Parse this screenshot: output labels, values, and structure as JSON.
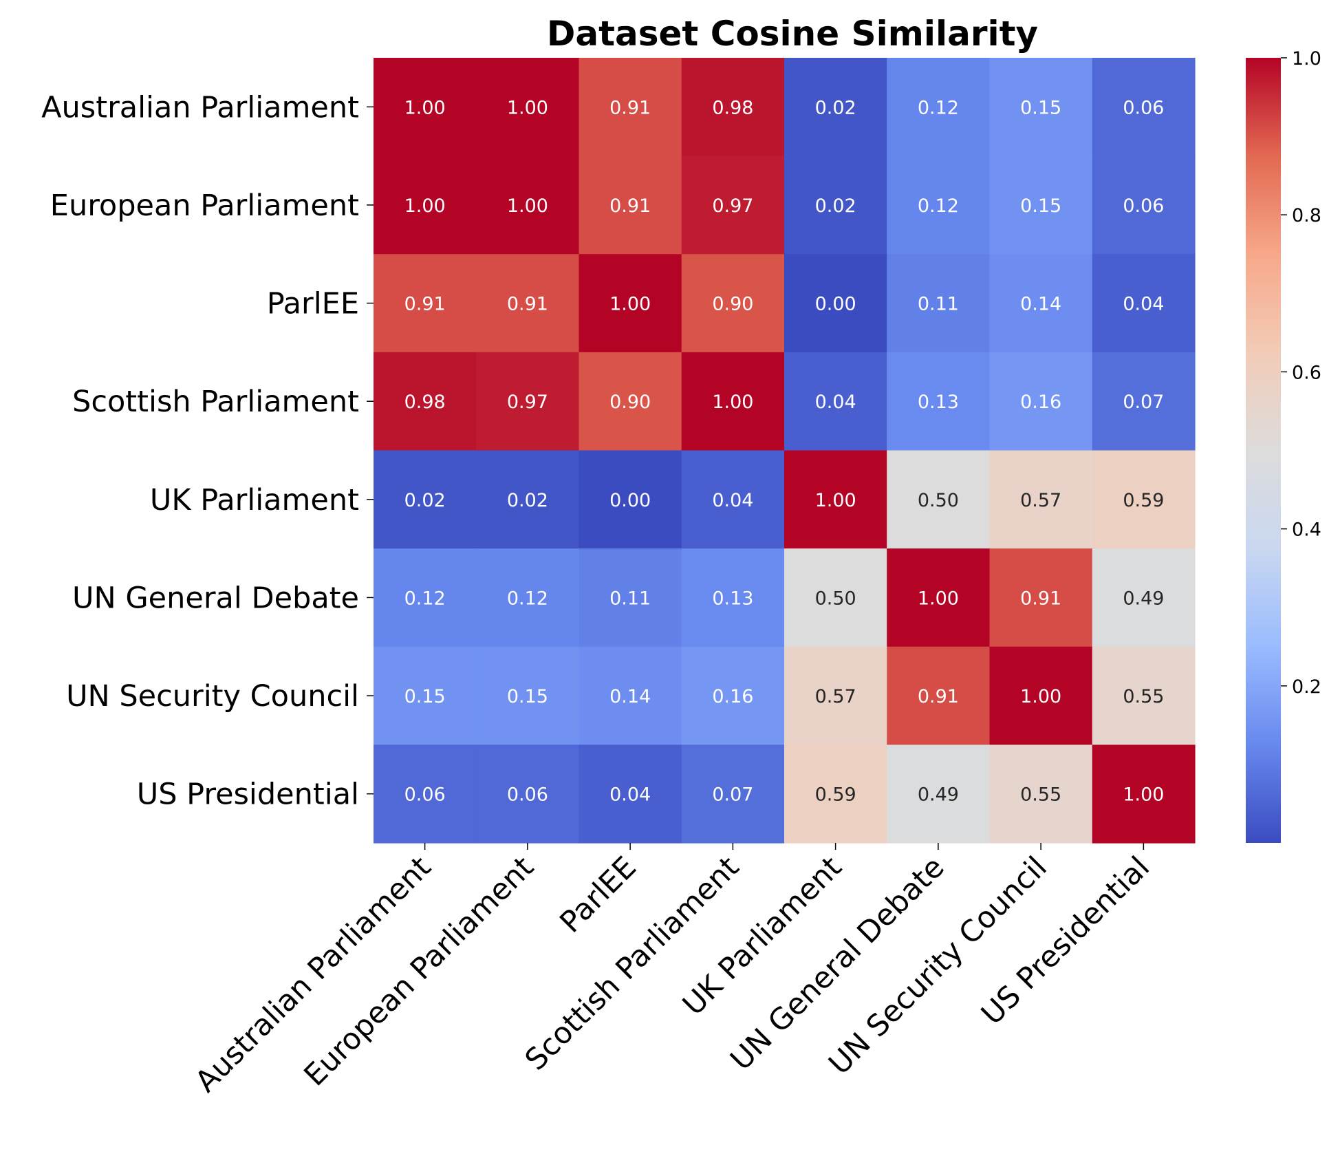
{
  "chart_data": {
    "type": "heatmap",
    "title": "Dataset Cosine Similarity",
    "xlabel": "",
    "ylabel": "",
    "colormap": "coolwarm",
    "colormap_stops": [
      "#3b4cc0",
      "#6788ee",
      "#9abbff",
      "#c9d7f0",
      "#dddcdc",
      "#f2cbb7",
      "#f7a889",
      "#e26952",
      "#b40426"
    ],
    "vmin": 0.0,
    "vmax": 1.0,
    "categories": [
      "Australian Parliament",
      "European Parliament",
      "ParlEE",
      "Scottish Parliament",
      "UK Parliament",
      "UN General Debate",
      "UN Security Council",
      "US Presidential"
    ],
    "matrix": [
      [
        1.0,
        1.0,
        0.91,
        0.98,
        0.02,
        0.12,
        0.15,
        0.06
      ],
      [
        1.0,
        1.0,
        0.91,
        0.97,
        0.02,
        0.12,
        0.15,
        0.06
      ],
      [
        0.91,
        0.91,
        1.0,
        0.9,
        0.0,
        0.11,
        0.14,
        0.04
      ],
      [
        0.98,
        0.97,
        0.9,
        1.0,
        0.04,
        0.13,
        0.16,
        0.07
      ],
      [
        0.02,
        0.02,
        0.0,
        0.04,
        1.0,
        0.5,
        0.57,
        0.59
      ],
      [
        0.12,
        0.12,
        0.11,
        0.13,
        0.5,
        1.0,
        0.91,
        0.49
      ],
      [
        0.15,
        0.15,
        0.14,
        0.16,
        0.57,
        0.91,
        1.0,
        0.55
      ],
      [
        0.06,
        0.06,
        0.04,
        0.07,
        0.59,
        0.49,
        0.55,
        1.0
      ]
    ],
    "value_format": "0.00",
    "colorbar": {
      "ticks": [
        0.2,
        0.4,
        0.6,
        0.8,
        1.0
      ],
      "tick_labels": [
        "0.2",
        "0.4",
        "0.6",
        "0.8",
        "1.0"
      ],
      "placement": "right"
    }
  }
}
